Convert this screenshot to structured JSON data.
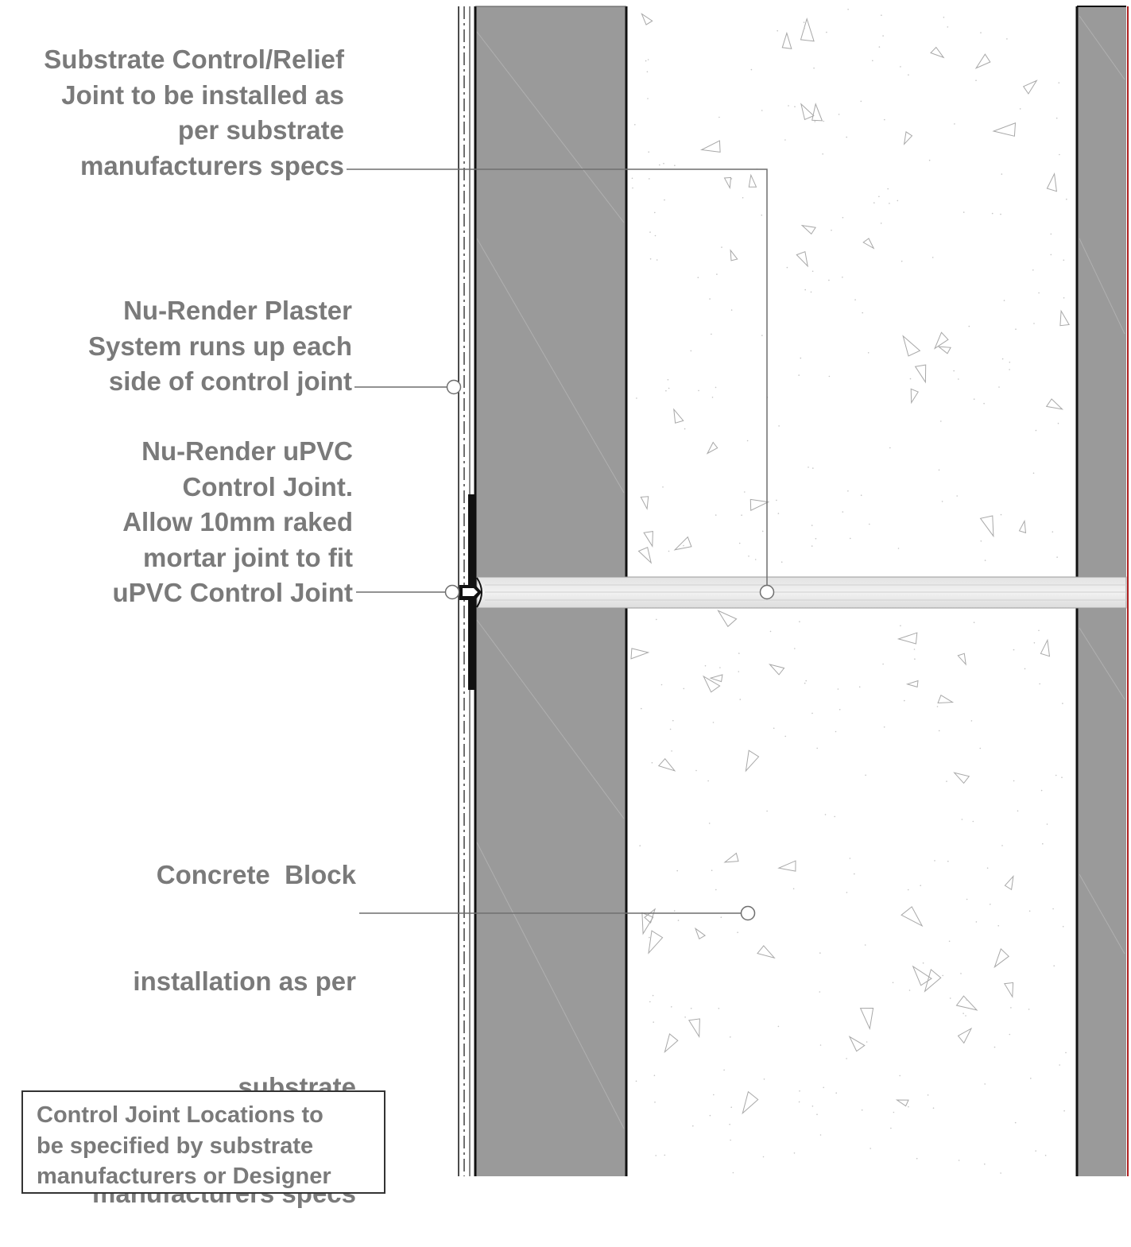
{
  "callouts": {
    "substrate_joint": {
      "lines": [
        "Substrate Control/Relief",
        "Joint to be installed as",
        "per substrate",
        "manufacturers specs"
      ]
    },
    "plaster_system": {
      "lines": [
        "Nu-Render Plaster",
        "System runs up each",
        "side of control joint"
      ]
    },
    "upvc_joint": {
      "lines": [
        "Nu-Render uPVC",
        "Control Joint.",
        "Allow 10mm raked",
        "mortar joint to fit",
        "uPVC Control Joint"
      ]
    },
    "concrete_block": {
      "lines": [
        "Concrete  Block",
        "installation as per",
        "substrate",
        "manufacturers specs"
      ]
    }
  },
  "note": {
    "lines": [
      "Control Joint Locations to",
      "be specified by substrate",
      "manufacturers or Designer"
    ]
  },
  "colors": {
    "block_face": "#9a9a9a",
    "concrete_fill": "#ffffff",
    "leader_line": "#6f6f6f",
    "text": "#7a7a7a",
    "edge_red": "#b02020"
  }
}
